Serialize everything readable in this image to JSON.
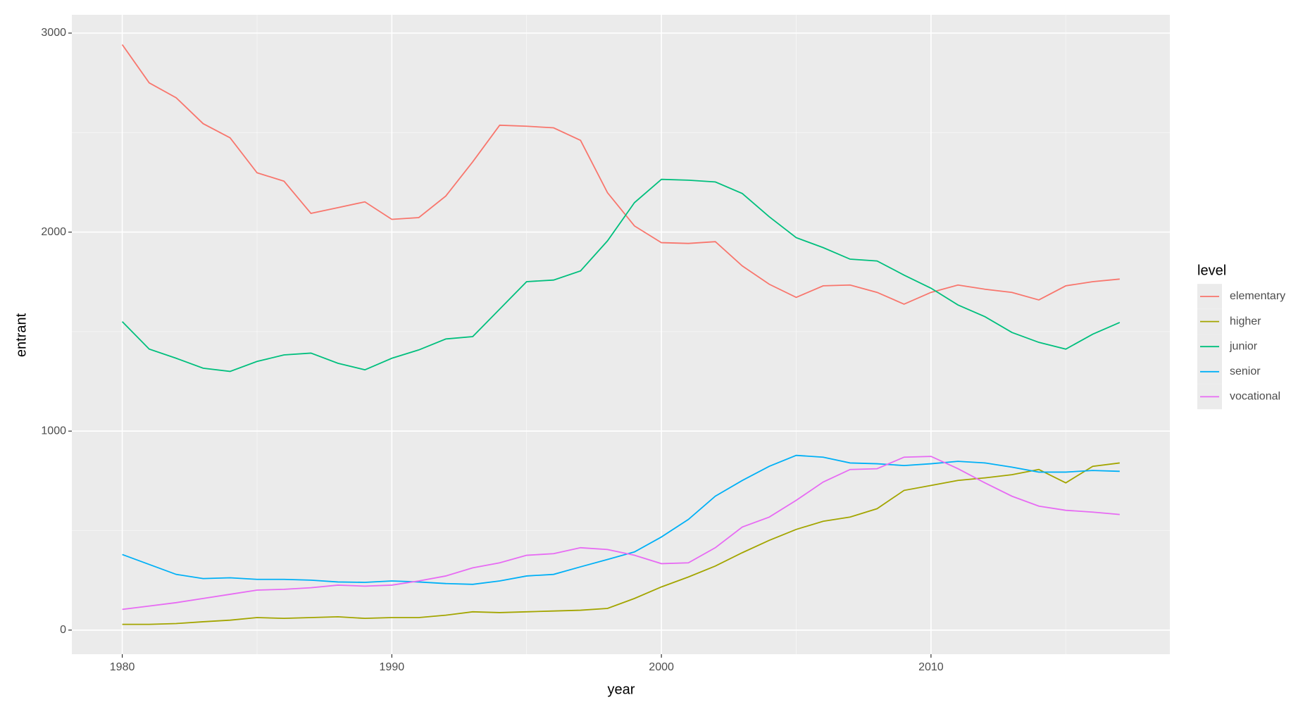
{
  "chart_data": {
    "type": "line",
    "x_label": "year",
    "y_label": "entrant",
    "legend_title": "level",
    "x": [
      1980,
      1981,
      1982,
      1983,
      1984,
      1985,
      1986,
      1987,
      1988,
      1989,
      1990,
      1991,
      1992,
      1993,
      1994,
      1995,
      1996,
      1997,
      1998,
      1999,
      2000,
      2001,
      2002,
      2003,
      2004,
      2005,
      2006,
      2007,
      2008,
      2009,
      2010,
      2011,
      2012,
      2013,
      2014,
      2015,
      2016,
      2017
    ],
    "series": [
      {
        "name": "elementary",
        "color": "#F8766D",
        "values": [
          2942,
          2750,
          2675,
          2545,
          2474,
          2298,
          2256,
          2094,
          2123,
          2152,
          2064,
          2073,
          2181,
          2353,
          2537,
          2532,
          2524,
          2461,
          2198,
          2031,
          1947,
          1943,
          1952,
          1830,
          1738,
          1672,
          1730,
          1734,
          1697,
          1638,
          1697,
          1734,
          1713,
          1697,
          1659,
          1730,
          1751,
          1764
        ]
      },
      {
        "name": "higher",
        "color": "#A3A500",
        "values": [
          29,
          29,
          33,
          42,
          50,
          63,
          59,
          63,
          67,
          59,
          63,
          63,
          75,
          92,
          88,
          92,
          96,
          100,
          109,
          159,
          217,
          267,
          322,
          389,
          451,
          506,
          547,
          568,
          610,
          702,
          727,
          752,
          765,
          781,
          807,
          740,
          823,
          840
        ]
      },
      {
        "name": "junior",
        "color": "#00BF7D",
        "values": [
          1550,
          1412,
          1366,
          1316,
          1300,
          1350,
          1383,
          1392,
          1341,
          1308,
          1366,
          1408,
          1463,
          1475,
          1613,
          1751,
          1759,
          1805,
          1956,
          2148,
          2265,
          2261,
          2252,
          2194,
          2077,
          1972,
          1922,
          1864,
          1855,
          1784,
          1718,
          1634,
          1575,
          1496,
          1446,
          1412,
          1487,
          1546
        ]
      },
      {
        "name": "senior",
        "color": "#00B0F6",
        "values": [
          380,
          330,
          280,
          259,
          263,
          255,
          255,
          251,
          242,
          240,
          247,
          242,
          234,
          230,
          247,
          272,
          280,
          318,
          355,
          393,
          468,
          556,
          673,
          752,
          823,
          878,
          869,
          840,
          836,
          827,
          836,
          848,
          840,
          819,
          794,
          794,
          802,
          798
        ]
      },
      {
        "name": "vocational",
        "color": "#E76BF3",
        "values": [
          104,
          121,
          138,
          159,
          180,
          201,
          205,
          213,
          226,
          221,
          226,
          247,
          272,
          313,
          338,
          376,
          384,
          414,
          405,
          376,
          334,
          338,
          414,
          518,
          568,
          652,
          744,
          807,
          811,
          869,
          873,
          811,
          740,
          673,
          623,
          602,
          593,
          581
        ]
      }
    ],
    "xlim": [
      1978.13,
      2018.86
    ],
    "ylim": [
      -121,
      3092
    ],
    "xticks": [
      1980,
      1990,
      2000,
      2010
    ],
    "yticks": [
      0,
      1000,
      2000,
      3000
    ],
    "xminor": [
      1985,
      1995,
      2005,
      2015
    ],
    "yminor": [
      500,
      1500,
      2500
    ],
    "grid": true
  }
}
